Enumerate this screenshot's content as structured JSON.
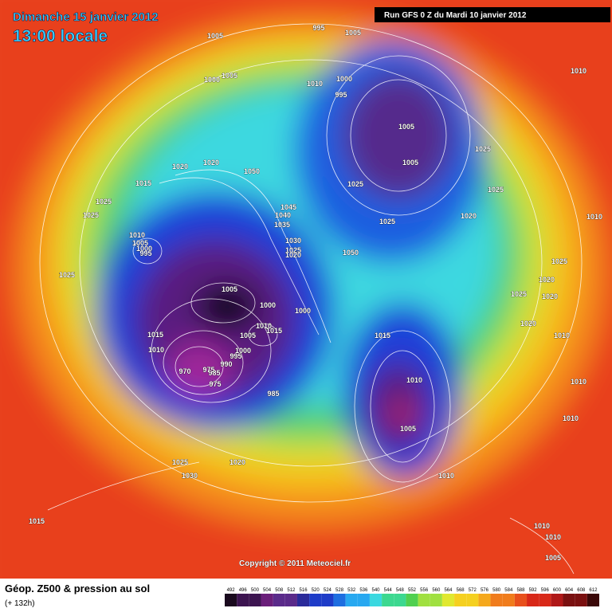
{
  "header": {
    "date": "Dimanche 15 janvier 2012",
    "time": "13:00 locale",
    "run": "Run GFS 0 Z du Mardi 10 janvier 2012"
  },
  "copyright": "Copyright © 2011 Meteociel.fr",
  "footer": {
    "title": "Géop. Z500 & pression au sol",
    "lead": "(+ 132h)"
  },
  "isobar_labels": [
    995,
    1005,
    1005,
    1000,
    1005,
    1010,
    1000,
    995,
    1005,
    1005,
    1010,
    1025,
    1025,
    1020,
    1025,
    1025,
    1020,
    1020,
    1050,
    1015,
    1025,
    1025,
    1045,
    1040,
    1035,
    1030,
    1025,
    1020,
    1050,
    1010,
    1005,
    1000,
    995,
    1025,
    1005,
    1000,
    1000,
    1015,
    1010,
    1010,
    1015,
    1005,
    1000,
    995,
    990,
    985,
    975,
    970,
    975,
    985,
    1015,
    1010,
    1005,
    1010,
    1025,
    1020,
    1025,
    1020,
    1020,
    1010,
    1010,
    1010,
    1010,
    1025,
    1020,
    1030,
    1015,
    1010,
    1010,
    1005
  ],
  "colorbar": {
    "ticks": [
      492,
      496,
      500,
      504,
      508,
      512,
      516,
      520,
      524,
      528,
      532,
      536,
      540,
      544,
      548,
      552,
      556,
      560,
      564,
      568,
      572,
      576,
      580,
      584,
      588,
      592,
      596,
      600,
      604,
      608,
      612
    ]
  }
}
